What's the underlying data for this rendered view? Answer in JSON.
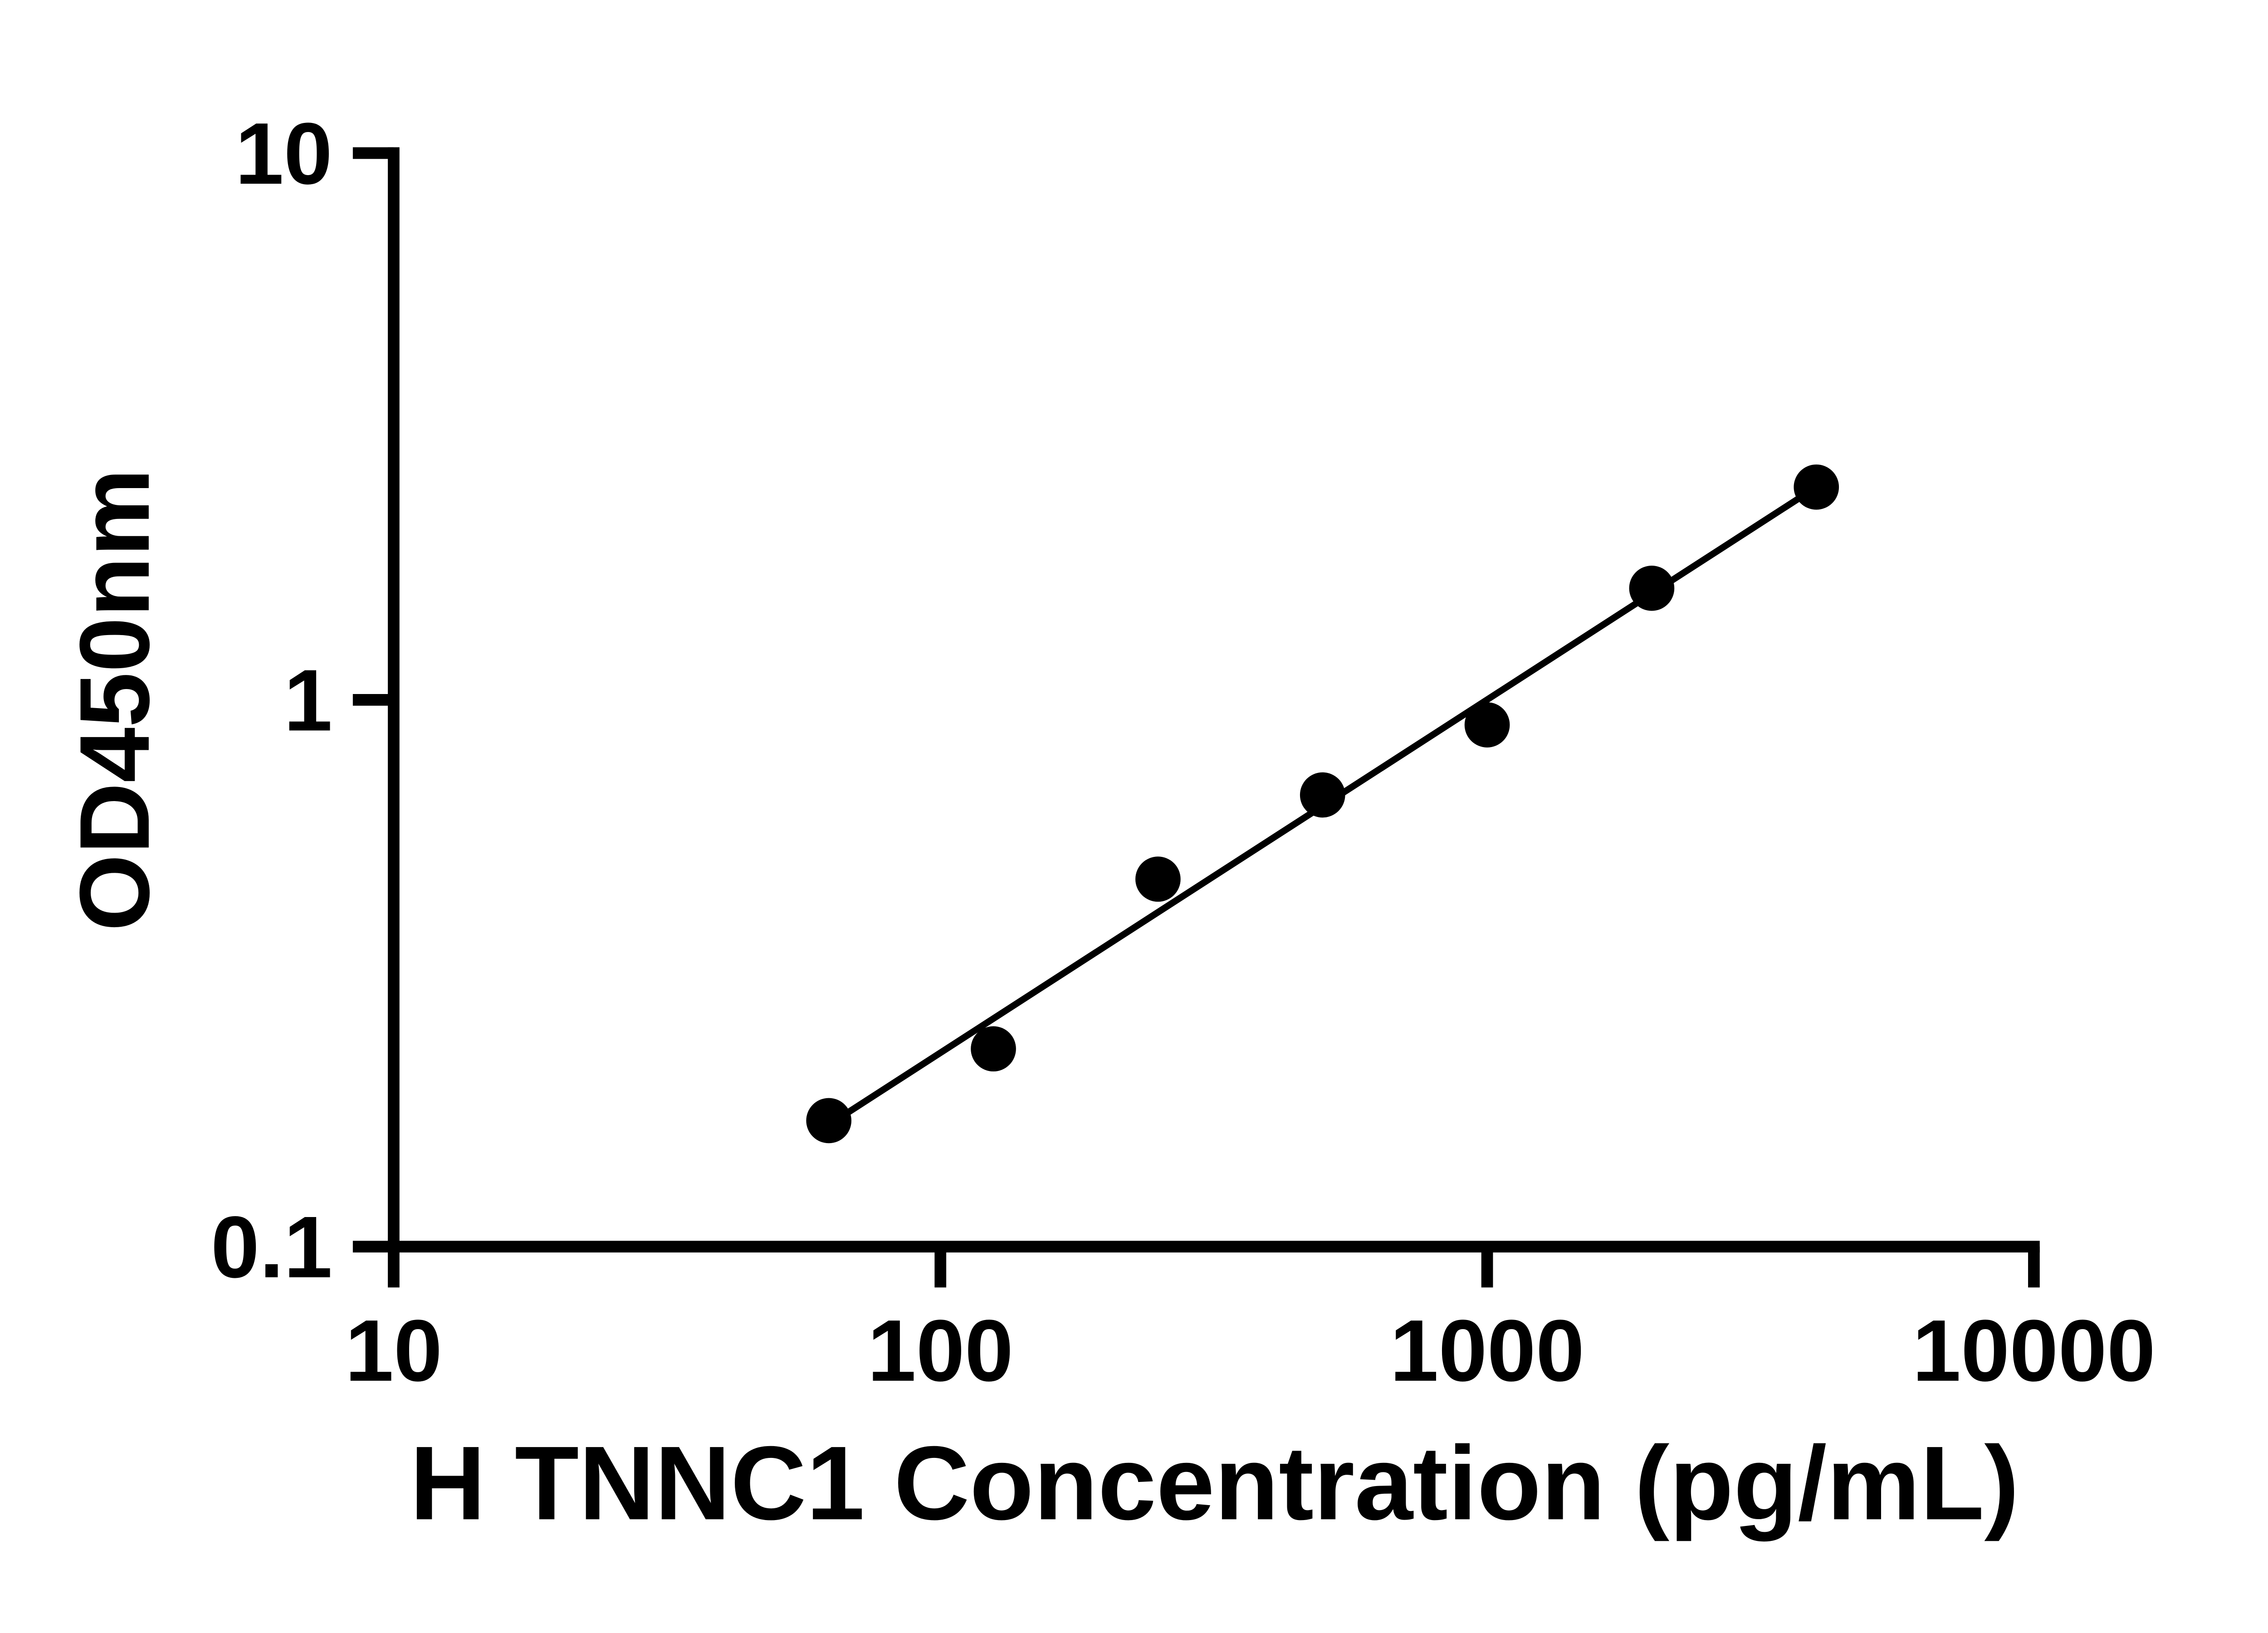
{
  "chart_data": {
    "type": "scatter",
    "x": [
      62.5,
      125,
      250,
      500,
      1000,
      2000,
      4000
    ],
    "y": [
      0.17,
      0.23,
      0.47,
      0.67,
      0.9,
      1.6,
      2.45
    ],
    "trendline": {
      "x": [
        62.5,
        4000
      ],
      "y": [
        0.167,
        2.45
      ]
    },
    "title": "",
    "xlabel": "H TNNC1 Concentration (pg/mL)",
    "ylabel": "OD450nm",
    "xscale": "log",
    "yscale": "log",
    "xlim": [
      10,
      10000
    ],
    "ylim": [
      0.1,
      10
    ],
    "xticks": [
      10,
      100,
      1000,
      10000
    ],
    "xtick_labels": [
      "10",
      "100",
      "1000",
      "10000"
    ],
    "yticks": [
      0.1,
      1,
      10
    ],
    "ytick_labels": [
      "0.1",
      "1",
      "10"
    ],
    "grid": false,
    "legend": null,
    "marker_color": "#000000",
    "line_color": "#000000",
    "background_color": "#ffffff"
  }
}
